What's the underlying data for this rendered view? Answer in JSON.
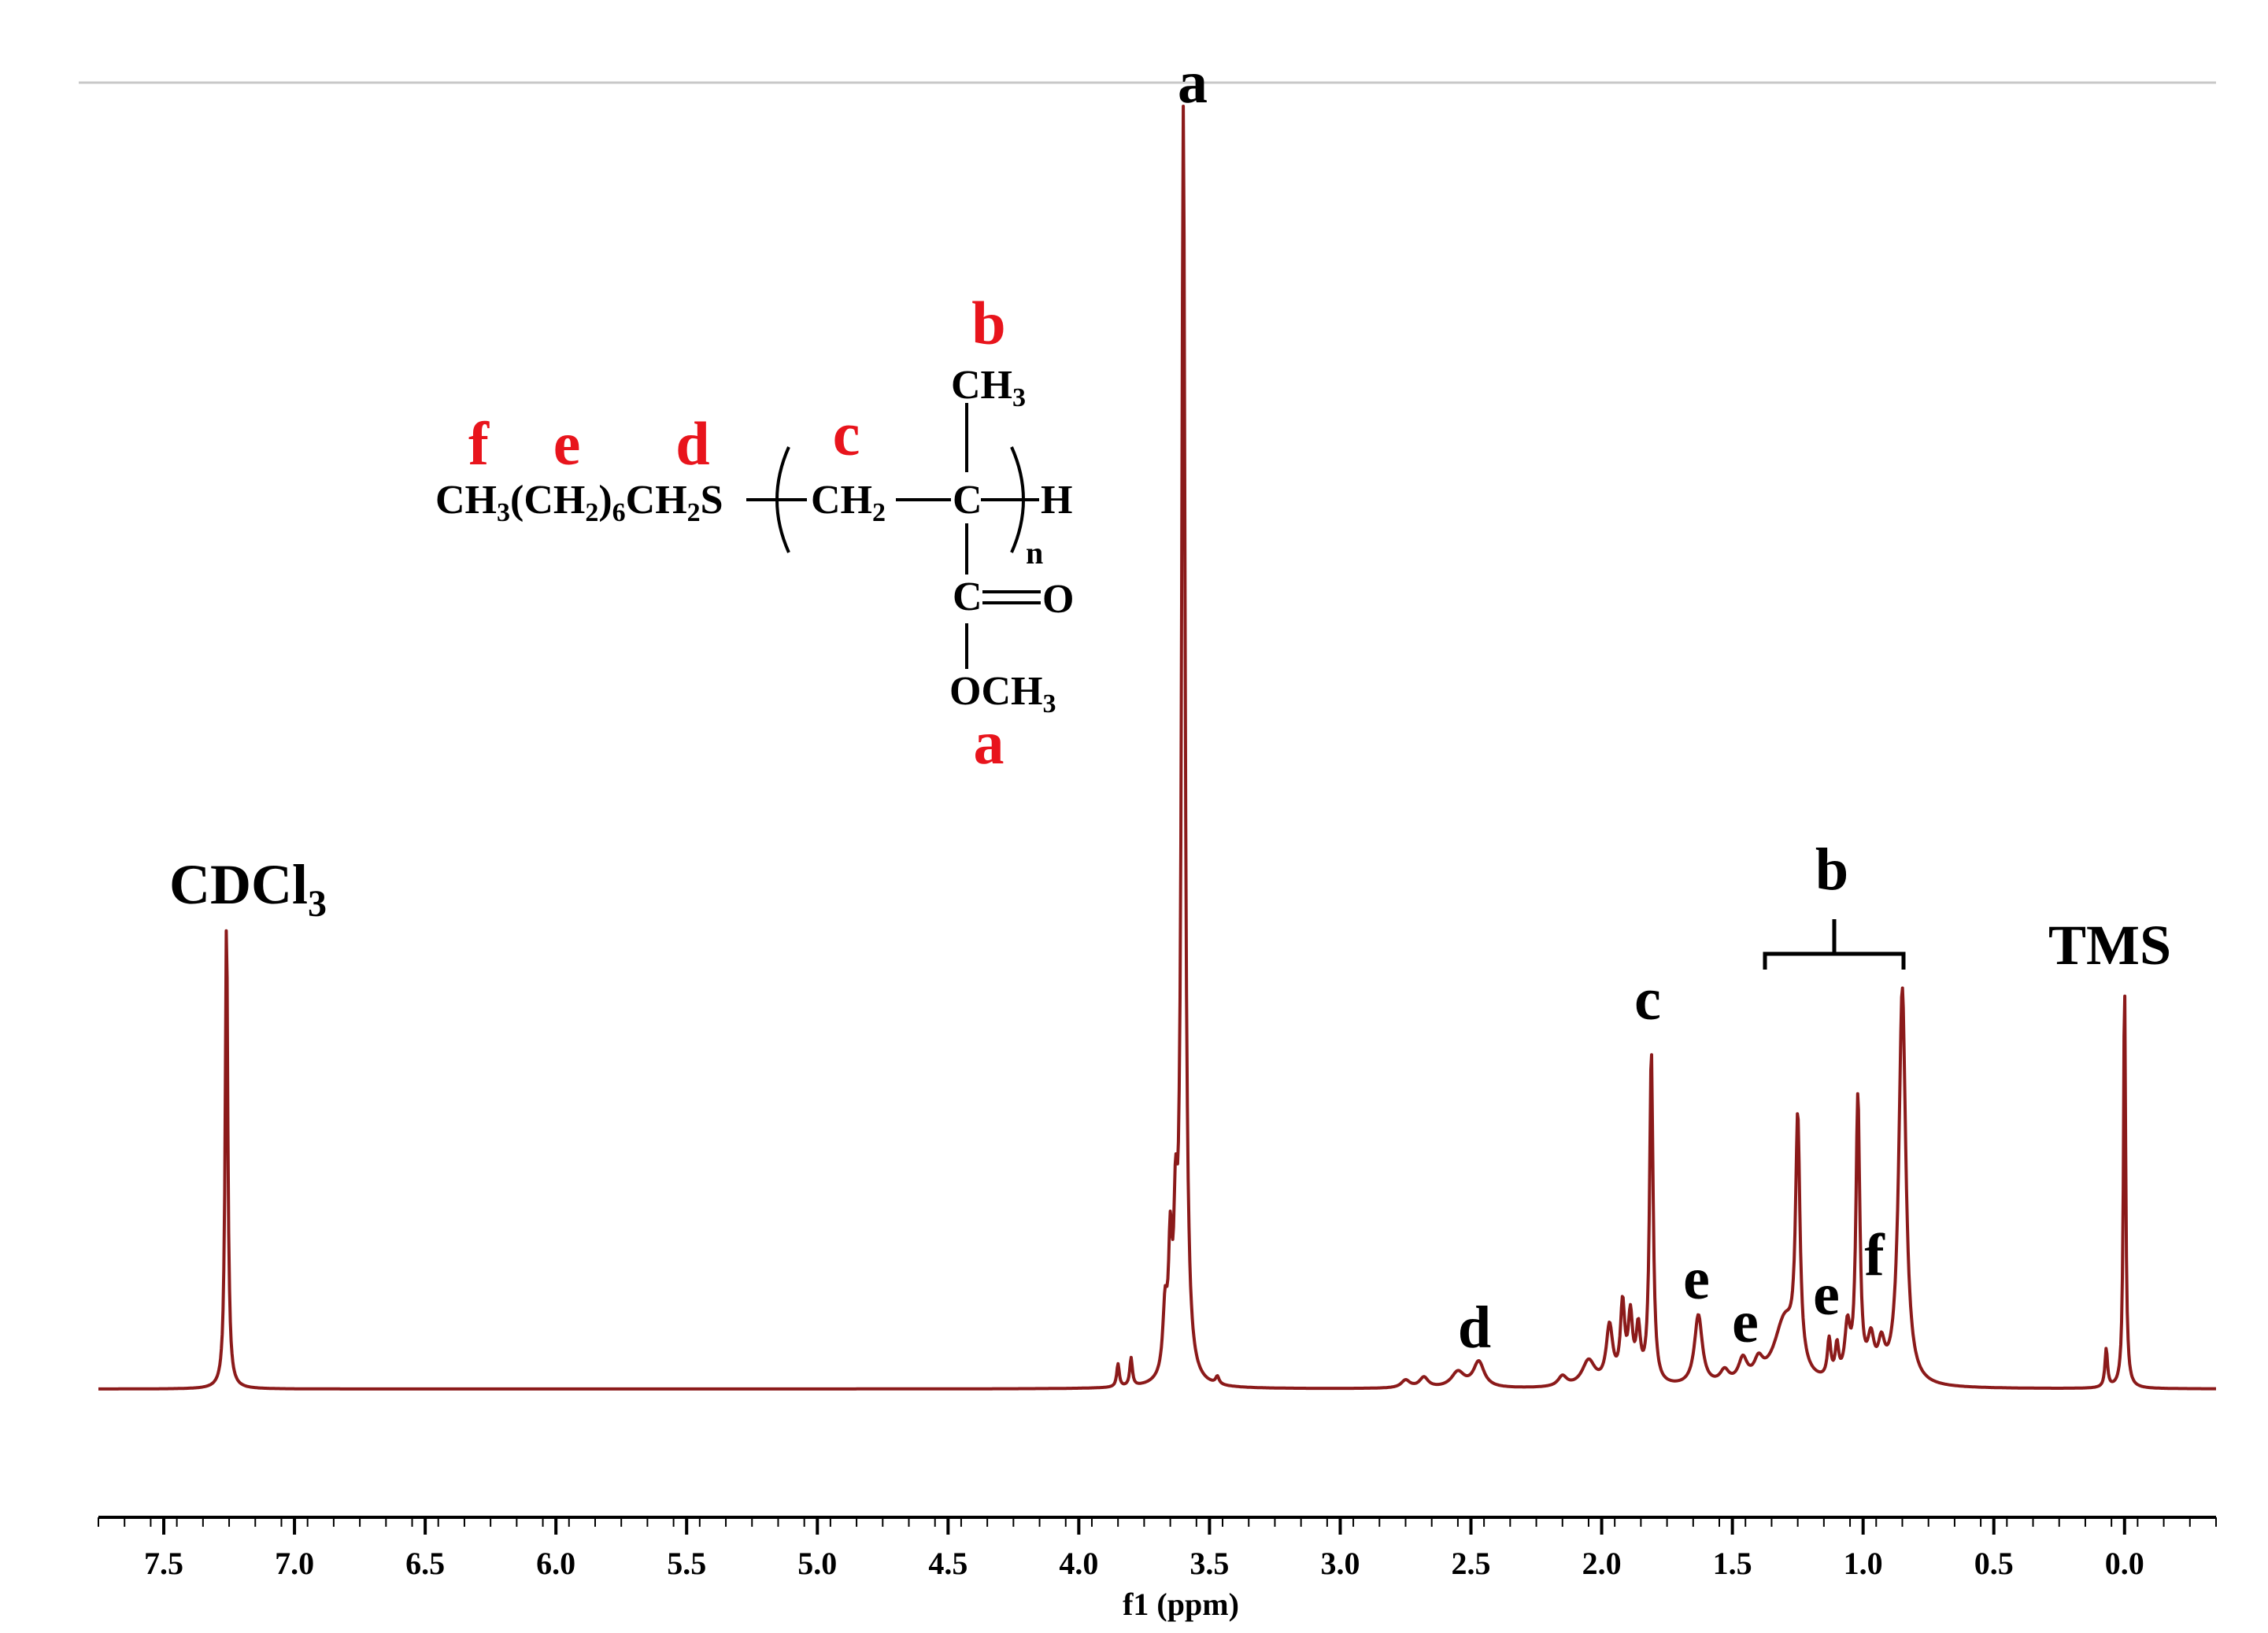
{
  "chart_data": {
    "type": "line",
    "title": "",
    "xlabel": "f1 (ppm)",
    "ylabel": "",
    "x_reversed": true,
    "xlim": [
      7.75,
      -0.35
    ],
    "ylim": [
      0,
      1
    ],
    "x_ticks": [
      7.5,
      7.0,
      6.5,
      6.0,
      5.5,
      5.0,
      4.5,
      4.0,
      3.5,
      3.0,
      2.5,
      2.0,
      1.5,
      1.0,
      0.5,
      0.0
    ],
    "x_tick_labels": [
      "7.5",
      "7.0",
      "6.5",
      "6.0",
      "5.5",
      "5.0",
      "4.5",
      "4.0",
      "3.5",
      "3.0",
      "2.5",
      "2.0",
      "1.5",
      "1.0",
      "0.5",
      "0.0"
    ],
    "grid": false,
    "series_color": "#8b1a1a",
    "peaks": [
      {
        "ppm": 7.26,
        "height": 0.365,
        "width": 0.006
      },
      {
        "ppm": 3.85,
        "height": 0.018,
        "width": 0.006
      },
      {
        "ppm": 3.8,
        "height": 0.022,
        "width": 0.006
      },
      {
        "ppm": 3.67,
        "height": 0.05,
        "width": 0.01
      },
      {
        "ppm": 3.65,
        "height": 0.09,
        "width": 0.008
      },
      {
        "ppm": 3.63,
        "height": 0.1,
        "width": 0.008
      },
      {
        "ppm": 3.6,
        "height": 1.0,
        "width": 0.008
      },
      {
        "ppm": 3.47,
        "height": 0.006,
        "width": 0.008
      },
      {
        "ppm": 2.75,
        "height": 0.006,
        "width": 0.02
      },
      {
        "ppm": 2.68,
        "height": 0.008,
        "width": 0.02
      },
      {
        "ppm": 2.55,
        "height": 0.012,
        "width": 0.03
      },
      {
        "ppm": 2.47,
        "height": 0.02,
        "width": 0.025
      },
      {
        "ppm": 2.15,
        "height": 0.008,
        "width": 0.02
      },
      {
        "ppm": 2.05,
        "height": 0.02,
        "width": 0.03
      },
      {
        "ppm": 1.97,
        "height": 0.045,
        "width": 0.015
      },
      {
        "ppm": 1.92,
        "height": 0.06,
        "width": 0.01
      },
      {
        "ppm": 1.89,
        "height": 0.05,
        "width": 0.01
      },
      {
        "ppm": 1.86,
        "height": 0.04,
        "width": 0.01
      },
      {
        "ppm": 1.81,
        "height": 0.26,
        "width": 0.008
      },
      {
        "ppm": 1.63,
        "height": 0.055,
        "width": 0.018
      },
      {
        "ppm": 1.53,
        "height": 0.01,
        "width": 0.02
      },
      {
        "ppm": 1.46,
        "height": 0.018,
        "width": 0.02
      },
      {
        "ppm": 1.4,
        "height": 0.014,
        "width": 0.02
      },
      {
        "ppm": 1.3,
        "height": 0.05,
        "width": 0.05
      },
      {
        "ppm": 1.25,
        "height": 0.19,
        "width": 0.01
      },
      {
        "ppm": 1.13,
        "height": 0.03,
        "width": 0.008
      },
      {
        "ppm": 1.1,
        "height": 0.025,
        "width": 0.008
      },
      {
        "ppm": 1.06,
        "height": 0.04,
        "width": 0.012
      },
      {
        "ppm": 1.02,
        "height": 0.22,
        "width": 0.009
      },
      {
        "ppm": 0.97,
        "height": 0.03,
        "width": 0.015
      },
      {
        "ppm": 0.93,
        "height": 0.025,
        "width": 0.015
      },
      {
        "ppm": 0.85,
        "height": 0.31,
        "width": 0.016
      },
      {
        "ppm": 0.07,
        "height": 0.03,
        "width": 0.006
      },
      {
        "ppm": 0.0,
        "height": 0.32,
        "width": 0.005
      }
    ],
    "annotations": [
      {
        "label": "CDCl3",
        "ppm": 7.26
      },
      {
        "label": "a",
        "ppm": 3.6
      },
      {
        "label": "d",
        "ppm": 2.47
      },
      {
        "label": "c",
        "ppm": 1.81
      },
      {
        "label": "e",
        "ppm": 1.63
      },
      {
        "label": "e",
        "ppm": 1.46
      },
      {
        "label": "e",
        "ppm": 1.13
      },
      {
        "label": "f",
        "ppm": 0.93
      },
      {
        "label": "b",
        "ppm_from": 1.38,
        "ppm_to": 0.83
      },
      {
        "label": "TMS",
        "ppm": 0.0
      }
    ],
    "structure": {
      "labels_red": {
        "f": "f",
        "e": "e",
        "d": "d",
        "c": "c",
        "b": "b",
        "a": "a"
      },
      "chain_prefix": "CH3(CH2)6CH2S",
      "repeat_ch2": "CH2",
      "quaternary_c": "C",
      "end_group": "H",
      "repeat_index": "n",
      "methyl": "CH3",
      "carbonyl_c": "C",
      "carbonyl_o": "O",
      "methoxy": "OCH3"
    }
  }
}
